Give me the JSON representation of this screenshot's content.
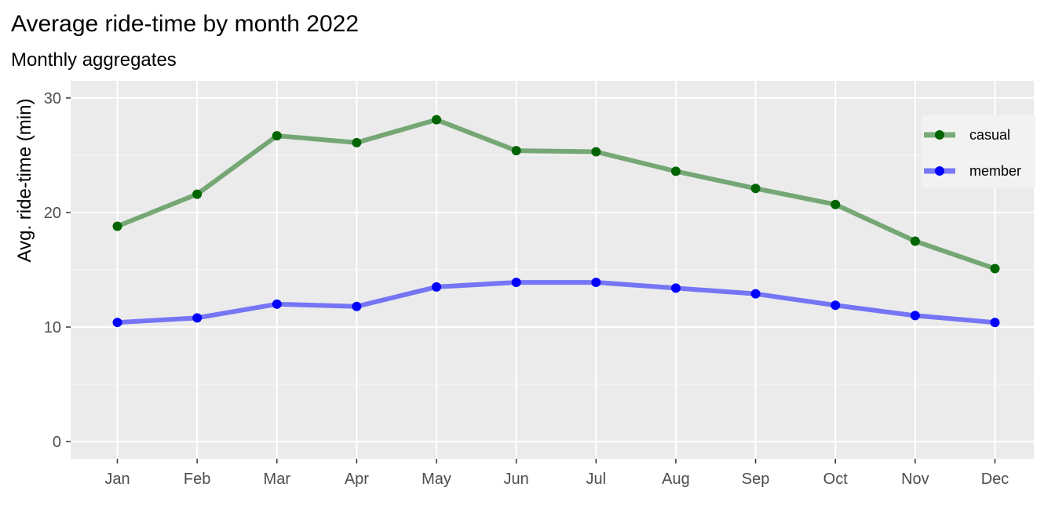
{
  "chart_data": {
    "type": "line",
    "title": "Average ride-time by month 2022",
    "subtitle": "Monthly aggregates",
    "xlabel": "",
    "ylabel": "Avg. ride-time (min)",
    "categories": [
      "Jan",
      "Feb",
      "Mar",
      "Apr",
      "May",
      "Jun",
      "Jul",
      "Aug",
      "Sep",
      "Oct",
      "Nov",
      "Dec"
    ],
    "ylim": [
      -1.5,
      31.5
    ],
    "yticks": [
      0,
      10,
      20,
      30
    ],
    "grid": true,
    "legend_position": "top-right",
    "background_color": "#ebebeb",
    "series": [
      {
        "name": "casual",
        "color": "#006400",
        "values": [
          18.8,
          21.6,
          26.7,
          26.1,
          28.1,
          25.4,
          25.3,
          23.6,
          22.1,
          20.7,
          17.5,
          15.1
        ]
      },
      {
        "name": "member",
        "color": "#0000ff",
        "values": [
          10.4,
          10.8,
          12.0,
          11.8,
          13.5,
          13.9,
          13.9,
          13.4,
          12.9,
          11.9,
          11.0,
          10.4
        ]
      }
    ]
  }
}
